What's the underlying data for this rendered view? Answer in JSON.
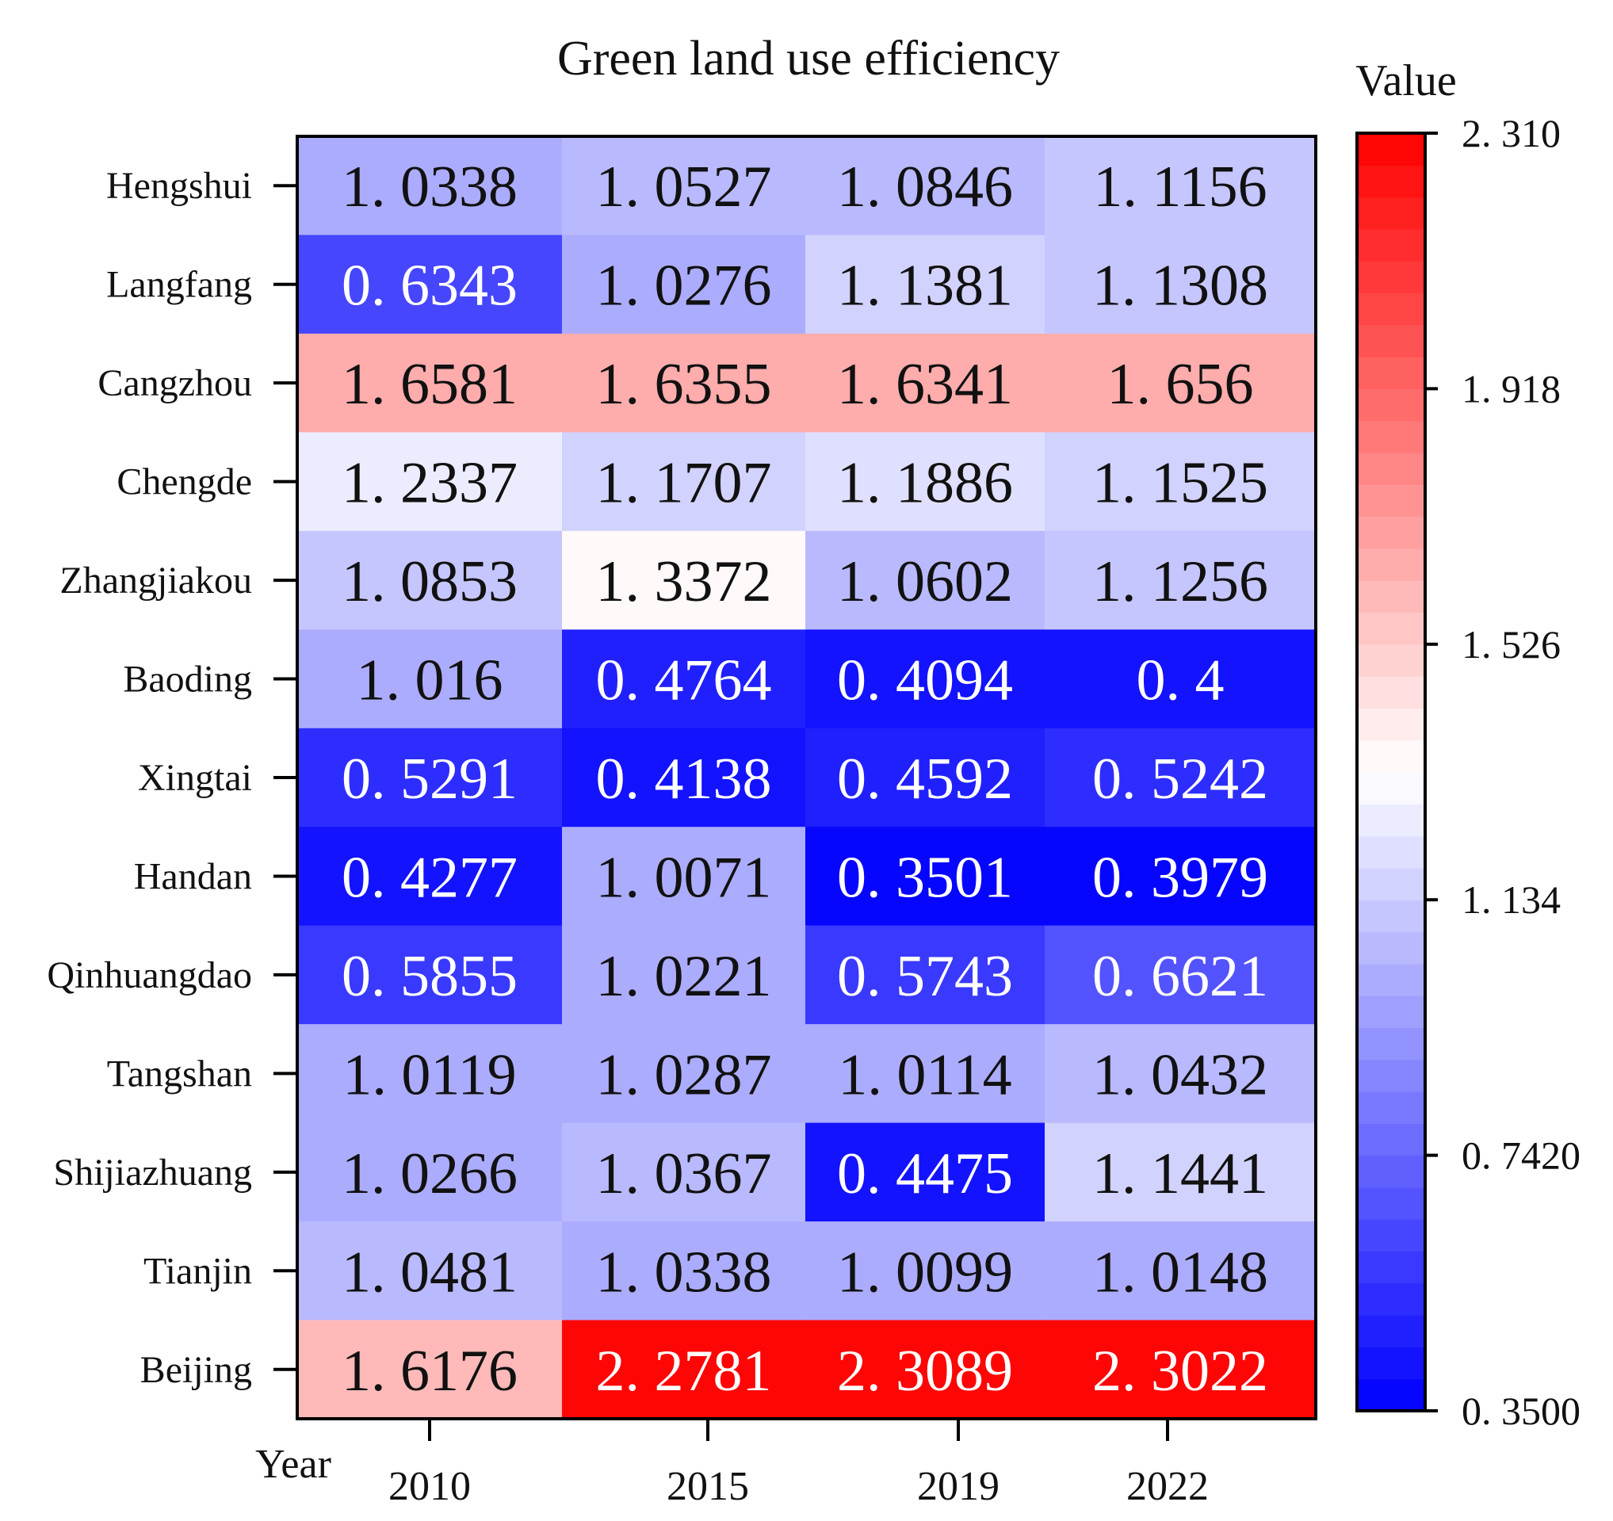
{
  "chart_data": {
    "type": "heatmap",
    "title": "Green land use efficiency",
    "xlabel": "Year",
    "ylabel": "",
    "columns": [
      "2010",
      "2015",
      "2019",
      "2022"
    ],
    "rows": [
      "Hengshui",
      "Langfang",
      "Cangzhou",
      "Chengde",
      "Zhangjiakou",
      "Baoding",
      "Xingtai",
      "Handan",
      "Qinhuangdao",
      "Tangshan",
      "Shijiazhuang",
      "Tianjin",
      "Beijing"
    ],
    "values": [
      [
        1.0338,
        1.0527,
        1.0846,
        1.1156
      ],
      [
        0.6343,
        1.0276,
        1.1381,
        1.1308
      ],
      [
        1.6581,
        1.6355,
        1.6341,
        1.656
      ],
      [
        1.2337,
        1.1707,
        1.1886,
        1.1525
      ],
      [
        1.0853,
        1.3372,
        1.0602,
        1.1256
      ],
      [
        1.016,
        0.4764,
        0.4094,
        0.4
      ],
      [
        0.5291,
        0.4138,
        0.4592,
        0.5242
      ],
      [
        0.4277,
        1.0071,
        0.3501,
        0.3979
      ],
      [
        0.5855,
        1.0221,
        0.5743,
        0.6621
      ],
      [
        1.0119,
        1.0287,
        1.0114,
        1.0432
      ],
      [
        1.0266,
        1.0367,
        0.4475,
        1.1441
      ],
      [
        1.0481,
        1.0338,
        1.0099,
        1.0148
      ],
      [
        1.6176,
        2.2781,
        2.3089,
        2.3022
      ]
    ],
    "value_labels": [
      [
        "1. 0338",
        "1. 0527",
        "1. 0846",
        "1. 1156"
      ],
      [
        "0. 6343",
        "1. 0276",
        "1. 1381",
        "1. 1308"
      ],
      [
        "1. 6581",
        "1. 6355",
        "1. 6341",
        "1. 656"
      ],
      [
        "1. 2337",
        "1. 1707",
        "1. 1886",
        "1. 1525"
      ],
      [
        "1. 0853",
        "1. 3372",
        "1. 0602",
        "1. 1256"
      ],
      [
        "1. 016",
        "0. 4764",
        "0. 4094",
        "0. 4"
      ],
      [
        "0. 5291",
        "0. 4138",
        "0. 4592",
        "0. 5242"
      ],
      [
        "0. 4277",
        "1. 0071",
        "0. 3501",
        "0. 3979"
      ],
      [
        "0. 5855",
        "1. 0221",
        "0. 5743",
        "0. 6621"
      ],
      [
        "1. 0119",
        "1. 0287",
        "1. 0114",
        "1. 0432"
      ],
      [
        "1. 0266",
        "1. 0367",
        "0. 4475",
        "1. 1441"
      ],
      [
        "1. 0481",
        "1. 0338",
        "1. 0099",
        "1. 0148"
      ],
      [
        "1. 6176",
        "2. 2781",
        "2. 3089",
        "2. 3022"
      ]
    ],
    "colorbar": {
      "title": "Value",
      "min": 0.35,
      "max": 2.31,
      "center": 1.33,
      "ticks": [
        2.31,
        1.918,
        1.526,
        1.134,
        0.742,
        0.35
      ],
      "tick_labels": [
        "2. 310",
        "1. 918",
        "1. 526",
        "1. 134",
        "0. 7420",
        "0. 3500"
      ],
      "low_color": "#0000ff",
      "mid_color": "#ffffff",
      "high_color": "#ff0000",
      "levels": 40
    }
  }
}
